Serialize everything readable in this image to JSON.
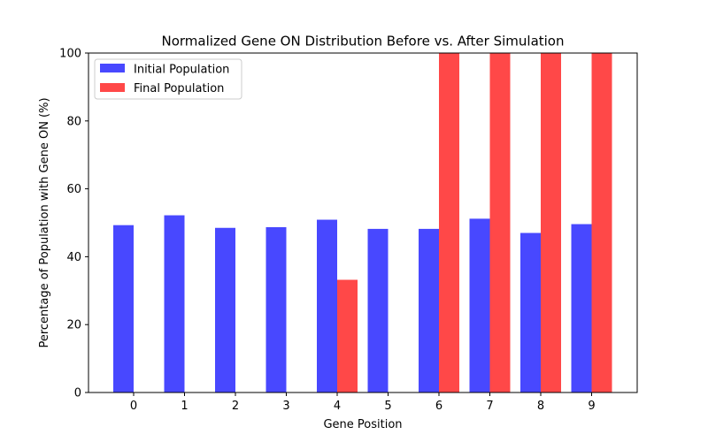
{
  "chart_data": {
    "type": "bar",
    "title": "Normalized Gene ON Distribution Before vs. After Simulation",
    "xlabel": "Gene Position",
    "ylabel": "Percentage of Population with Gene ON (%)",
    "categories": [
      "0",
      "1",
      "2",
      "3",
      "4",
      "5",
      "6",
      "7",
      "8",
      "9"
    ],
    "yticks": [
      "0",
      "20",
      "40",
      "60",
      "80",
      "100"
    ],
    "ylim": [
      0,
      100
    ],
    "grid": false,
    "legend_position": "top-left",
    "series": [
      {
        "name": "Initial Population",
        "color": "#4848ff",
        "values": [
          49.3,
          52.2,
          48.5,
          48.7,
          50.9,
          48.2,
          48.2,
          51.2,
          47.0,
          49.6
        ]
      },
      {
        "name": "Final Population",
        "color": "#ff4848",
        "values": [
          0,
          0,
          0,
          0,
          33.2,
          0,
          100,
          100,
          100,
          100
        ]
      }
    ]
  }
}
